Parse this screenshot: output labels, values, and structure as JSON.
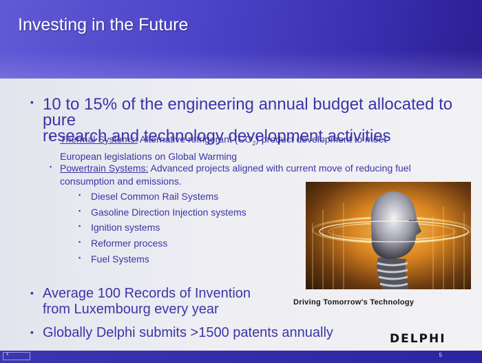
{
  "slide": {
    "title": "Investing in the Future",
    "page_number": "5",
    "nav_glyph": "‹",
    "bullet_char": "▪"
  },
  "bullets": {
    "b1_line1": "10 to 15% of the engineering annual budget allocated to pure",
    "b1_line2": "research and technology development activities",
    "thermal_label": "Thermal Systems:",
    "thermal_text1_pre": " Alternative refrigerant (CO",
    "thermal_sub": "2",
    "thermal_text1_post": ") product development to meet",
    "thermal_text2": "European legislations on Global Warming",
    "powertrain_label": "Powertrain Systems:",
    "powertrain_text1": " Advanced projects aligned with current move of reducing fuel",
    "powertrain_text2": "consumption and emissions.",
    "sub_items": [
      "Diesel Common Rail Systems",
      "Gasoline Direction Injection systems",
      "Ignition systems",
      "Reformer process",
      "Fuel Systems"
    ],
    "b2_line1": "Average 100 Records of Invention",
    "b2_line2": "from Luxembourg every year",
    "b3": "Globally Delphi submits >1500 patents annually"
  },
  "image": {
    "caption": "Driving Tomorrow's Technology",
    "logo": "DELPHI"
  },
  "colors": {
    "header": "#4c45c8",
    "text": "#3b34a8",
    "content_bg": "#ececf2"
  }
}
